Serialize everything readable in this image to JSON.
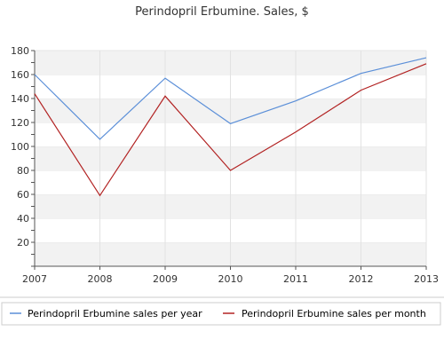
{
  "chart_data": {
    "type": "line",
    "title": "Perindopril Erbumine. Sales, $",
    "xlabel": "",
    "ylabel": "",
    "x": [
      "2007",
      "2008",
      "2009",
      "2010",
      "2011",
      "2012",
      "2013"
    ],
    "ylim": [
      0,
      180
    ],
    "yticks": [
      "20",
      "40",
      "60",
      "80",
      "100",
      "120",
      "140",
      "160",
      "180"
    ],
    "grid": true,
    "legend_position": "bottom",
    "series": [
      {
        "name": "Perindopril Erbumine sales per year",
        "color": "#5b8fd8",
        "values": [
          160,
          106,
          157,
          119,
          138,
          161,
          174
        ]
      },
      {
        "name": "Perindopril Erbumine sales per month",
        "color": "#b22222",
        "values": [
          144,
          59,
          142,
          80,
          112,
          147,
          169
        ]
      }
    ]
  }
}
